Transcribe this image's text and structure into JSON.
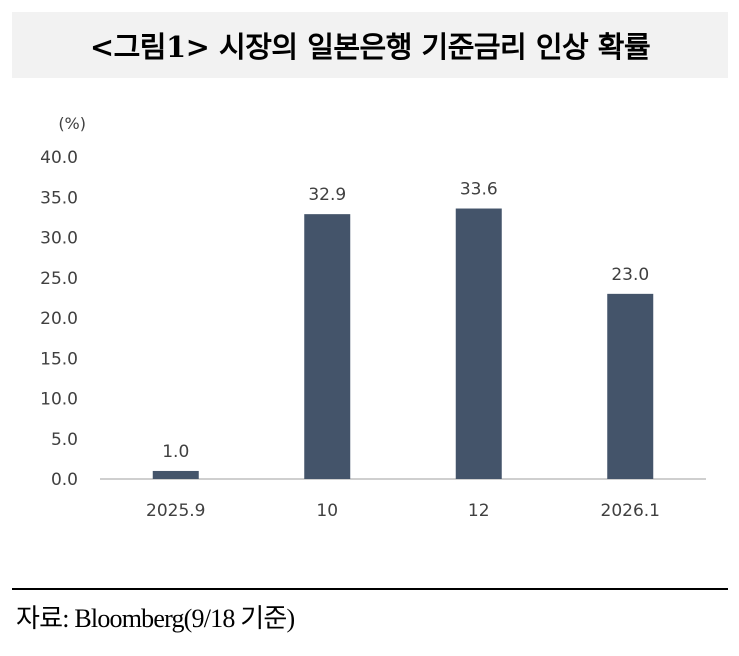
{
  "title": "<그림1> 시장의 일본은행 기준금리 인상 확률",
  "source": "자료: Bloomberg(9/18 기준)",
  "chart_data": {
    "type": "bar",
    "categories": [
      "2025.9",
      "10",
      "12",
      "2026.1"
    ],
    "values": [
      1.0,
      32.9,
      33.6,
      23.0
    ],
    "value_labels": [
      "1.0",
      "32.9",
      "33.6",
      "23.0"
    ],
    "yunit": "(%)",
    "ylim": [
      0,
      40
    ],
    "yticks": [
      "0.0",
      "5.0",
      "10.0",
      "15.0",
      "20.0",
      "25.0",
      "30.0",
      "35.0",
      "40.0"
    ],
    "grid": false,
    "bar_color": "#44546a"
  }
}
